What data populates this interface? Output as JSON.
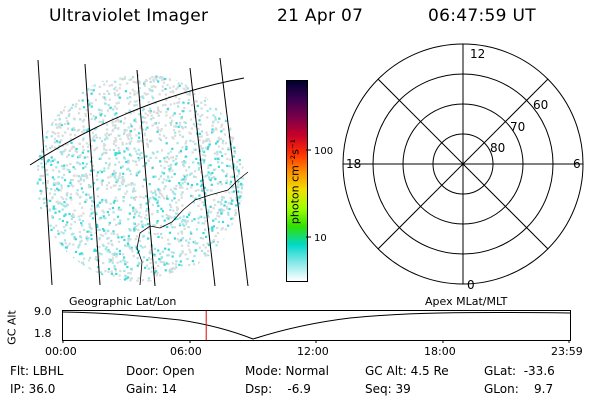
{
  "header": {
    "instrument": "Ultraviolet Imager",
    "date": "21 Apr 07",
    "time": "06:47:59 UT"
  },
  "colorbar": {
    "unit": "photon cm⁻²s⁻¹",
    "tick_100": "100",
    "tick_10": "10",
    "scale": "log",
    "colors": [
      "#000030",
      "#3a0050",
      "#7a004a",
      "#c8002a",
      "#ff3000",
      "#ff9000",
      "#f0e000",
      "#a0ff00",
      "#30e000",
      "#00d8c8",
      "#88e8e8",
      "#ffffff"
    ]
  },
  "polar_plot": {
    "label_top": "12",
    "label_left": "18",
    "label_right": "6",
    "label_bottom": "0",
    "ring_60": "60",
    "ring_70": "70",
    "ring_80": "80"
  },
  "timeline": {
    "left_caption": "Geographic Lat/Lon",
    "right_caption": "Apex MLat/MLT",
    "axis_label": "GC Alt",
    "y_max": "9.0",
    "y_min": "1.8",
    "ticks": [
      "00:00",
      "06:00",
      "12:00",
      "18:00",
      "23:59"
    ],
    "current_time_fraction": 0.283,
    "current_marker_color": "#e00000"
  },
  "status": {
    "filter": "Flt: LBHL",
    "ip": "IP: 36.0",
    "door": "Door: Open",
    "gain": "Gain: 14",
    "mode": "Mode: Normal",
    "dsp": "Dsp:    -6.9",
    "gc_alt": "GC Alt: 4.5 Re",
    "seq": "Seq: 39",
    "glat": "GLat:  -33.6",
    "glon": "GLon:    9.7"
  }
}
